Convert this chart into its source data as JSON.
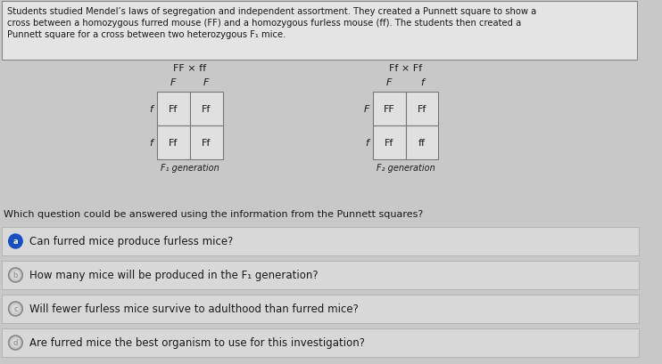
{
  "bg_color": "#c8c8c8",
  "panel_bg": "#e8e8e8",
  "cell_bg": "#e8e8e8",
  "text_color": "#1a1a1a",
  "header_text_line1": "Students studied Mendel’s laws of segregation and independent assortment. They created a Punnett square to show a",
  "header_text_line2": "cross between a homozygous furred mouse (FF) and a homozygous furless mouse (ff). The students then created a",
  "header_text_line3": "Punnett square for a cross between two heterozygous F₁ mice.",
  "cross1_title": "FF × ff",
  "cross2_title": "Ff × Ff",
  "cross1_col_labels": [
    "F",
    "F"
  ],
  "cross1_row_labels": [
    "f",
    "f"
  ],
  "cross1_cells": [
    [
      "Ff",
      "Ff"
    ],
    [
      "Ff",
      "Ff"
    ]
  ],
  "cross2_col_labels": [
    "F",
    "f"
  ],
  "cross2_row_labels": [
    "F",
    "f"
  ],
  "cross2_cells": [
    [
      "FF",
      "Ff"
    ],
    [
      "Ff",
      "ff"
    ]
  ],
  "cross1_gen_label": "F₁ generation",
  "cross2_gen_label": "F₂ generation",
  "question": "Which question could be answered using the information from the Punnett squares?",
  "options": [
    {
      "letter": "a",
      "text": "Can furred mice produce furless mice?",
      "selected": true
    },
    {
      "letter": "b",
      "text": "How many mice will be produced in the F₁ generation?",
      "selected": false
    },
    {
      "letter": "c",
      "text": "Will fewer furless mice survive to adulthood than furred mice?",
      "selected": false
    },
    {
      "letter": "d",
      "text": "Are furred mice the best organism to use for this investigation?",
      "selected": false
    }
  ],
  "punnett_border_color": "#777777",
  "punnett_cell_bg": "#e0e0e0",
  "circle_selected_fill": "#1a4fc4",
  "circle_selected_edge": "#1a4fc4",
  "circle_unselected_fill": "#c8c8c8",
  "circle_unselected_edge": "#888888",
  "option_bg": "#d8d8d8",
  "option_border": "#aaaaaa",
  "font_size_header": 7.2,
  "font_size_main": 8.0,
  "font_size_punnett": 8.0,
  "font_size_options": 8.5
}
